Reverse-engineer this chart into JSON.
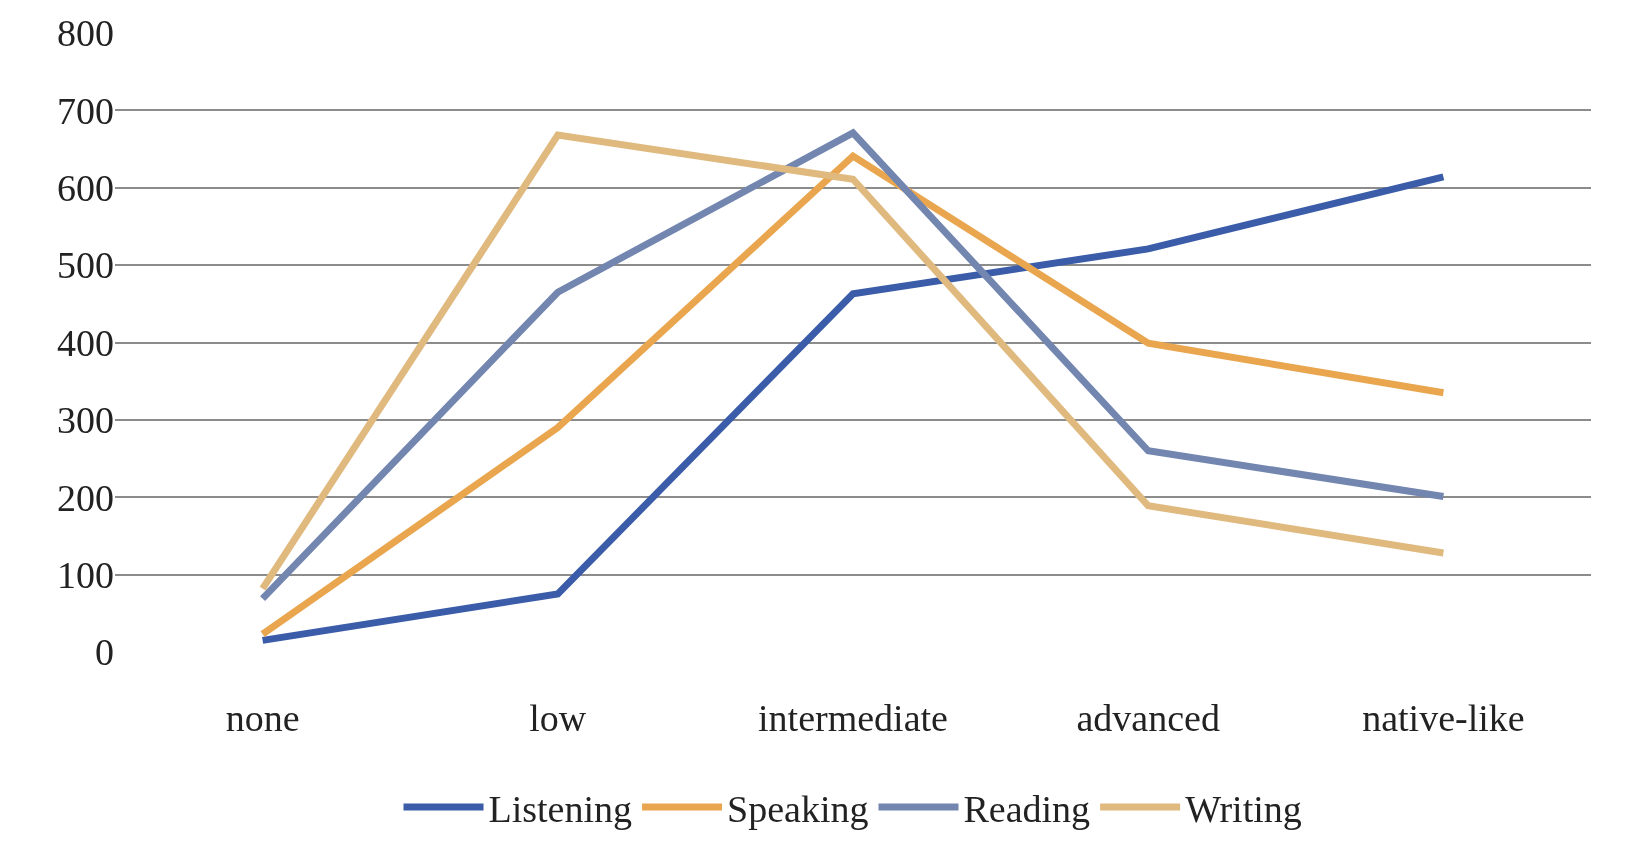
{
  "chart_data": {
    "type": "line",
    "categories": [
      "none",
      "low",
      "intermediate",
      "advanced",
      "native-like"
    ],
    "series": [
      {
        "name": "Listening",
        "color": "#3b5ca8",
        "values": [
          15,
          75,
          463,
          521,
          614
        ]
      },
      {
        "name": "Speaking",
        "color": "#e9a64e",
        "values": [
          23,
          290,
          641,
          399,
          335
        ]
      },
      {
        "name": "Reading",
        "color": "#7286b0",
        "values": [
          69,
          465,
          671,
          260,
          201
        ]
      },
      {
        "name": "Writing",
        "color": "#e0b97f",
        "values": [
          82,
          668,
          611,
          189,
          128
        ]
      }
    ],
    "ylim": [
      0,
      800
    ],
    "yticks": [
      0,
      100,
      200,
      300,
      400,
      500,
      600,
      700,
      800
    ],
    "grid": "y",
    "legend": "bottom",
    "marker": "none",
    "line_style": "solid"
  }
}
